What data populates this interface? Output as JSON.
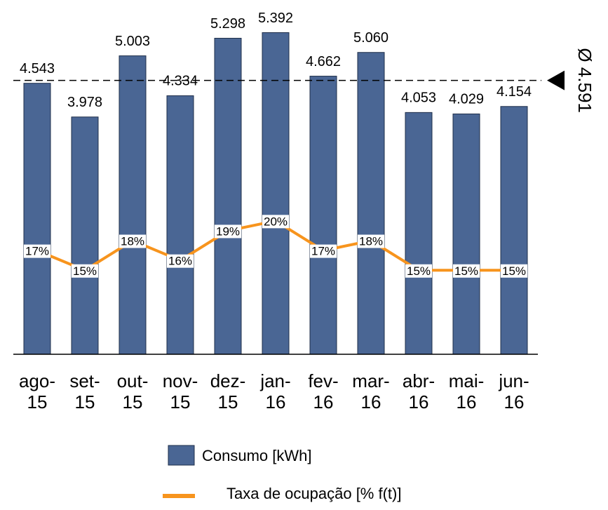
{
  "chart_data": {
    "type": "bar",
    "categories": [
      "ago- 15",
      "set- 15",
      "out- 15",
      "nov- 15",
      "dez- 15",
      "jan- 16",
      "fev- 16",
      "mar- 16",
      "abr- 16",
      "mai- 16",
      "jun- 16"
    ],
    "series": [
      {
        "name": "Consumo [kWh]",
        "color": "#4a6694",
        "type": "bar",
        "values": [
          4543,
          3978,
          5003,
          4334,
          5298,
          5392,
          4662,
          5060,
          4053,
          4029,
          4154
        ],
        "value_labels": [
          "4.543",
          "3.978",
          "5.003",
          "4.334",
          "5.298",
          "5.392",
          "4.662",
          "5.060",
          "4.053",
          "4.029",
          "4.154"
        ]
      },
      {
        "name": "Taxa de ocupação [% f(t)]",
        "color": "#f7941d",
        "type": "line",
        "axis": "y2",
        "values": [
          17,
          15,
          18,
          16,
          19,
          20,
          17,
          18,
          15,
          15,
          15
        ],
        "value_labels": [
          "17%",
          "15%",
          "18%",
          "16%",
          "19%",
          "20%",
          "17%",
          "18%",
          "15%",
          "15%",
          "15%"
        ]
      }
    ],
    "average": 4591,
    "average_label": "Ø 4.591",
    "ylim": [
      0,
      5880
    ],
    "y2lim": [
      6.5,
      42
    ]
  }
}
